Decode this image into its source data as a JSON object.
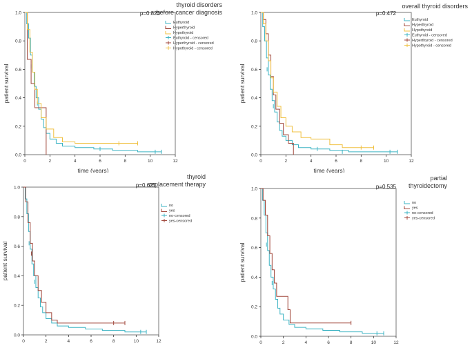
{
  "chart_data": [
    {
      "type": "line",
      "title": "thyroid disorders before cancer diagnosis",
      "title_lines": [
        "thyroid disorders",
        "before cancer diagnosis"
      ],
      "pvalue": "p=0.823",
      "xlabel": "time (years)",
      "ylabel": "patient survival",
      "xlim": [
        0,
        12
      ],
      "ylim": [
        0,
        1.0
      ],
      "xticks": [
        "0",
        "2",
        "4",
        "6",
        "8",
        "10",
        "12"
      ],
      "yticks": [
        "0.0",
        "0.2",
        "0.4",
        "0.6",
        "0.8",
        "1.0"
      ],
      "legend": [
        {
          "label": "Euthyroid",
          "color": "#3bb3c3",
          "censored": false
        },
        {
          "label": "Hyperthyroid",
          "color": "#a0463a",
          "censored": false
        },
        {
          "label": "Hypothyroid",
          "color": "#f0c040",
          "censored": false
        },
        {
          "label": "Euthyroid - censored",
          "color": "#3bb3c3",
          "censored": true
        },
        {
          "label": "Hyperthyroid - censored",
          "color": "#a0463a",
          "censored": true
        },
        {
          "label": "Hypothyroid - censored",
          "color": "#f0c040",
          "censored": true
        }
      ],
      "series": [
        {
          "name": "Euthyroid",
          "color": "#3bb3c3",
          "x": [
            0,
            0.15,
            0.3,
            0.45,
            0.6,
            0.75,
            0.9,
            1.1,
            1.3,
            1.5,
            1.7,
            2.0,
            2.5,
            3.0,
            4.0,
            5.5,
            7.0,
            9.0,
            10.9
          ],
          "y": [
            1.0,
            0.92,
            0.82,
            0.7,
            0.58,
            0.48,
            0.4,
            0.32,
            0.25,
            0.19,
            0.15,
            0.11,
            0.08,
            0.06,
            0.05,
            0.04,
            0.03,
            0.02,
            0.02
          ],
          "censored": [
            [
              0.5,
              0.62
            ],
            [
              1.0,
              0.36
            ],
            [
              6.0,
              0.04
            ],
            [
              10.4,
              0.02
            ],
            [
              10.9,
              0.02
            ]
          ]
        },
        {
          "name": "Hyperthyroid",
          "color": "#a0463a",
          "x": [
            0,
            0.2,
            0.5,
            0.8,
            1.2,
            1.7,
            1.7
          ],
          "y": [
            1.0,
            0.67,
            0.5,
            0.33,
            0.33,
            0.33,
            0.0
          ],
          "censored": []
        },
        {
          "name": "Hypothyroid",
          "color": "#f0c040",
          "x": [
            0,
            0.2,
            0.4,
            0.6,
            0.8,
            1.0,
            1.3,
            1.7,
            2.3,
            3.0,
            4.0,
            9.0
          ],
          "y": [
            1.0,
            0.88,
            0.72,
            0.58,
            0.46,
            0.36,
            0.26,
            0.18,
            0.12,
            0.09,
            0.08,
            0.08
          ],
          "censored": [
            [
              7.5,
              0.08
            ],
            [
              9.0,
              0.08
            ]
          ]
        }
      ]
    },
    {
      "type": "line",
      "title": "overall thyroid disorders",
      "title_lines": [
        "overall thyroid disorders"
      ],
      "pvalue": "p=0.472",
      "xlabel": "time (years)",
      "ylabel": "patient survival",
      "xlim": [
        0,
        12
      ],
      "ylim": [
        0,
        1.0
      ],
      "xticks": [
        "0",
        "2",
        "4",
        "6",
        "8",
        "10",
        "12"
      ],
      "yticks": [
        "0.0",
        "0.2",
        "0.4",
        "0.6",
        "0.8",
        "1.0"
      ],
      "legend": [
        {
          "label": "Euthyroid",
          "color": "#3bb3c3",
          "censored": false
        },
        {
          "label": "Hyperthyroid",
          "color": "#a0463a",
          "censored": false
        },
        {
          "label": "Hypothyroid",
          "color": "#f0c040",
          "censored": false
        },
        {
          "label": "Euthyroid - censored",
          "color": "#3bb3c3",
          "censored": true
        },
        {
          "label": "Hyperthyroid - censored",
          "color": "#a0463a",
          "censored": true
        },
        {
          "label": "Hypothyroid - censored",
          "color": "#f0c040",
          "censored": true
        }
      ],
      "series": [
        {
          "name": "Euthyroid",
          "color": "#3bb3c3",
          "x": [
            0,
            0.15,
            0.3,
            0.45,
            0.6,
            0.75,
            0.9,
            1.1,
            1.3,
            1.5,
            1.7,
            2.0,
            2.5,
            3.0,
            4.0,
            5.5,
            7.0,
            9.0,
            10.9
          ],
          "y": [
            1.0,
            0.9,
            0.8,
            0.68,
            0.56,
            0.46,
            0.38,
            0.3,
            0.23,
            0.17,
            0.13,
            0.1,
            0.07,
            0.05,
            0.04,
            0.03,
            0.02,
            0.02,
            0.02
          ],
          "censored": [
            [
              0.5,
              0.6
            ],
            [
              1.0,
              0.34
            ],
            [
              4.5,
              0.04
            ],
            [
              6.5,
              0.02
            ],
            [
              10.3,
              0.02
            ],
            [
              10.9,
              0.02
            ]
          ]
        },
        {
          "name": "Hyperthyroid",
          "color": "#a0463a",
          "x": [
            0,
            0.2,
            0.4,
            0.6,
            0.8,
            1.0,
            1.2,
            1.5,
            1.8,
            2.2,
            2.6,
            2.6
          ],
          "y": [
            1.0,
            0.95,
            0.85,
            0.7,
            0.55,
            0.42,
            0.32,
            0.22,
            0.14,
            0.08,
            0.06,
            0.0
          ],
          "censored": []
        },
        {
          "name": "Hypothyroid",
          "color": "#f0c040",
          "x": [
            0,
            0.2,
            0.4,
            0.6,
            0.8,
            1.0,
            1.3,
            1.6,
            2.0,
            2.5,
            3.2,
            4.0,
            5.5,
            6.5,
            9.0
          ],
          "y": [
            1.0,
            0.92,
            0.8,
            0.66,
            0.54,
            0.44,
            0.34,
            0.26,
            0.2,
            0.16,
            0.12,
            0.11,
            0.07,
            0.05,
            0.05
          ],
          "censored": [
            [
              8.0,
              0.05
            ],
            [
              9.0,
              0.05
            ]
          ]
        }
      ]
    },
    {
      "type": "line",
      "title": "thyroid replacement therapy",
      "title_lines": [
        "thyroid",
        "replacement therapy"
      ],
      "pvalue": "p=0.627",
      "xlabel": "time (years)",
      "ylabel": "patient survival",
      "xlim": [
        0,
        12
      ],
      "ylim": [
        0,
        1.0
      ],
      "xticks": [
        "0",
        "2",
        "4",
        "6",
        "8",
        "10",
        "12"
      ],
      "yticks": [
        "0.0",
        "0.2",
        "0.4",
        "0.6",
        "0.8",
        "1.0"
      ],
      "legend": [
        {
          "label": "no",
          "color": "#3bb3c3",
          "censored": false
        },
        {
          "label": "yes",
          "color": "#a0463a",
          "censored": false
        },
        {
          "label": "no-censored",
          "color": "#3bb3c3",
          "censored": true
        },
        {
          "label": "yes-censored",
          "color": "#a0463a",
          "censored": true
        }
      ],
      "series": [
        {
          "name": "no",
          "color": "#3bb3c3",
          "x": [
            0,
            0.15,
            0.3,
            0.45,
            0.6,
            0.75,
            0.9,
            1.1,
            1.3,
            1.5,
            1.7,
            2.0,
            2.5,
            3.0,
            4.0,
            5.5,
            7.0,
            9.0,
            10.9
          ],
          "y": [
            1.0,
            0.92,
            0.82,
            0.7,
            0.58,
            0.48,
            0.4,
            0.32,
            0.25,
            0.19,
            0.15,
            0.11,
            0.08,
            0.06,
            0.05,
            0.04,
            0.03,
            0.02,
            0.02
          ],
          "censored": [
            [
              0.5,
              0.62
            ],
            [
              1.0,
              0.36
            ],
            [
              10.4,
              0.02
            ],
            [
              10.9,
              0.02
            ]
          ]
        },
        {
          "name": "yes",
          "color": "#a0463a",
          "x": [
            0,
            0.2,
            0.4,
            0.6,
            0.8,
            1.0,
            1.3,
            1.6,
            2.0,
            2.5,
            3.0,
            9.0
          ],
          "y": [
            1.0,
            0.9,
            0.76,
            0.62,
            0.5,
            0.4,
            0.3,
            0.22,
            0.15,
            0.1,
            0.08,
            0.08
          ],
          "censored": [
            [
              0.7,
              0.55
            ],
            [
              8.0,
              0.08
            ],
            [
              9.0,
              0.08
            ]
          ]
        }
      ]
    },
    {
      "type": "line",
      "title": "partial thyroidectomy",
      "title_lines": [
        "partial",
        "thyroidectomy"
      ],
      "pvalue": "p=0.535",
      "xlabel": "time (years)",
      "ylabel": "patient survival",
      "xlim": [
        0,
        12
      ],
      "ylim": [
        0,
        1.0
      ],
      "xticks": [
        "0",
        "2",
        "4",
        "6",
        "8",
        "10",
        "12"
      ],
      "yticks": [
        "0.0",
        "0.2",
        "0.4",
        "0.6",
        "0.8",
        "1.0"
      ],
      "legend": [
        {
          "label": "no",
          "color": "#3bb3c3",
          "censored": false
        },
        {
          "label": "yes",
          "color": "#a0463a",
          "censored": false
        },
        {
          "label": "no-censored",
          "color": "#3bb3c3",
          "censored": true
        },
        {
          "label": "yes-censored",
          "color": "#a0463a",
          "censored": true
        }
      ],
      "series": [
        {
          "name": "no",
          "color": "#3bb3c3",
          "x": [
            0,
            0.15,
            0.3,
            0.45,
            0.6,
            0.75,
            0.9,
            1.1,
            1.3,
            1.5,
            1.7,
            2.0,
            2.5,
            3.0,
            4.0,
            5.5,
            7.0,
            9.0,
            10.9
          ],
          "y": [
            1.0,
            0.92,
            0.82,
            0.7,
            0.58,
            0.48,
            0.4,
            0.32,
            0.25,
            0.19,
            0.15,
            0.11,
            0.08,
            0.06,
            0.05,
            0.04,
            0.03,
            0.02,
            0.02
          ],
          "censored": [
            [
              0.5,
              0.62
            ],
            [
              1.0,
              0.36
            ],
            [
              10.3,
              0.02
            ],
            [
              10.9,
              0.02
            ]
          ]
        },
        {
          "name": "yes",
          "color": "#a0463a",
          "x": [
            0,
            0.2,
            0.4,
            0.6,
            0.8,
            1.0,
            1.2,
            1.4,
            2.0,
            2.4,
            2.6,
            8.0
          ],
          "y": [
            1.0,
            0.92,
            0.82,
            0.68,
            0.56,
            0.45,
            0.36,
            0.27,
            0.27,
            0.18,
            0.09,
            0.09
          ],
          "censored": [
            [
              8.0,
              0.09
            ]
          ]
        }
      ]
    }
  ]
}
